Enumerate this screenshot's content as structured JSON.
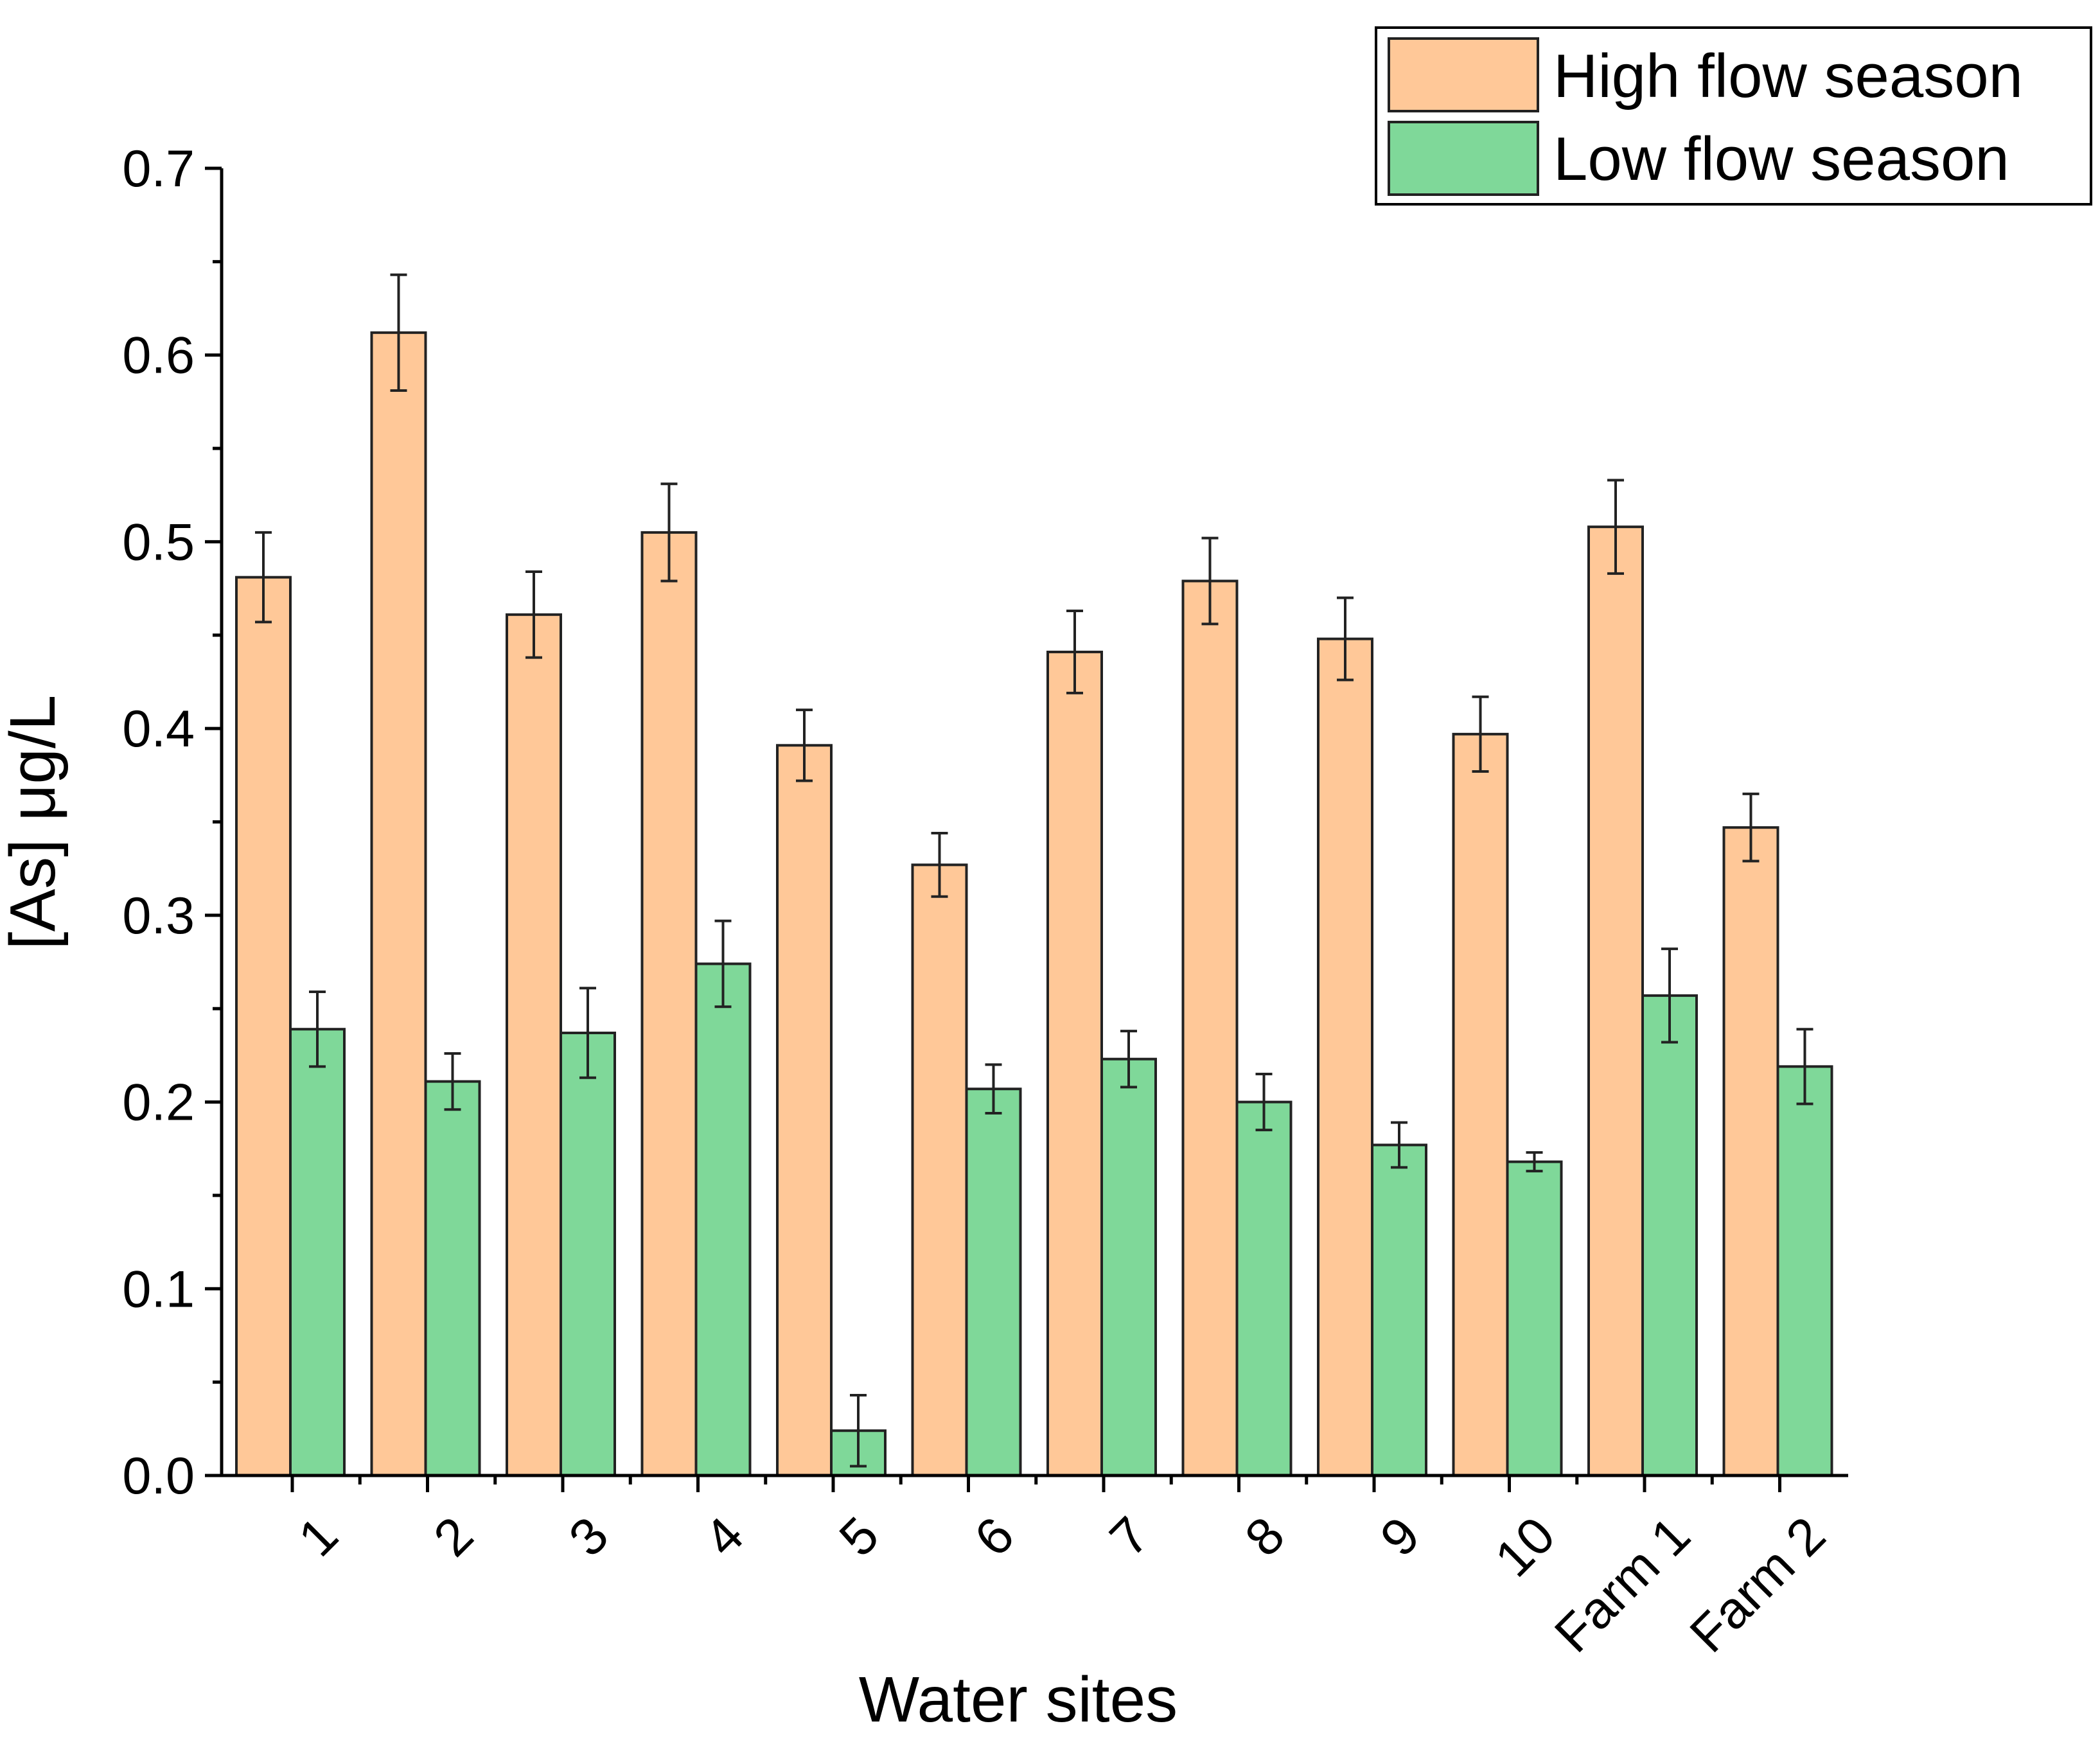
{
  "chart_data": {
    "type": "bar",
    "title": "",
    "xlabel": "Water sites",
    "ylabel": "[As] μg/L",
    "ylim": [
      0,
      0.7
    ],
    "yticks": [
      "0.0",
      "0.1",
      "0.2",
      "0.3",
      "0.4",
      "0.5",
      "0.6",
      "0.7"
    ],
    "categories": [
      "1",
      "2",
      "3",
      "4",
      "5",
      "6",
      "7",
      "8",
      "9",
      "10",
      "Farm 1",
      "Farm 2"
    ],
    "series": [
      {
        "name": "High flow season",
        "color": "#FFC898",
        "values": [
          0.481,
          0.612,
          0.461,
          0.505,
          0.391,
          0.327,
          0.441,
          0.479,
          0.448,
          0.397,
          0.508,
          0.347
        ],
        "errors": [
          0.024,
          0.031,
          0.023,
          0.026,
          0.019,
          0.017,
          0.022,
          0.023,
          0.022,
          0.02,
          0.025,
          0.018
        ]
      },
      {
        "name": "Low flow season",
        "color": "#7FD899",
        "values": [
          0.239,
          0.211,
          0.237,
          0.274,
          0.024,
          0.207,
          0.223,
          0.2,
          0.177,
          0.168,
          0.257,
          0.219
        ],
        "errors": [
          0.02,
          0.015,
          0.024,
          0.023,
          0.019,
          0.013,
          0.015,
          0.015,
          0.012,
          0.005,
          0.025,
          0.02
        ]
      }
    ],
    "legend_position": "top-right",
    "grid": false
  }
}
